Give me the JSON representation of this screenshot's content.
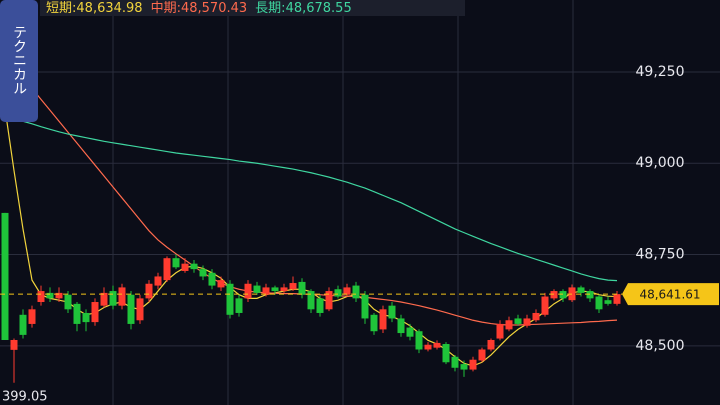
{
  "chart_data": {
    "type": "candlestick",
    "side_tab": "テクニカル",
    "separator": ":",
    "up_color": "#ff3b2f",
    "down_color": "#1fc43a",
    "ylim": [
      48338,
      49447
    ],
    "yticks": [
      {
        "value": 49250,
        "label": "49,250"
      },
      {
        "value": 49000,
        "label": "49,000"
      },
      {
        "value": 48750,
        "label": "48,750"
      },
      {
        "value": 48500,
        "label": "48,500"
      }
    ],
    "grid": true,
    "current_price": {
      "value": 48641.61,
      "label": "48,641.61"
    },
    "annotations": [
      "399.05"
    ],
    "open": [
      48864,
      48489,
      48585,
      48560,
      48620,
      48645,
      48630,
      48640,
      48615,
      48590,
      48565,
      48610,
      48650,
      48610,
      48640,
      48570,
      48630,
      48665,
      48680,
      48740,
      48705,
      48725,
      48710,
      48700,
      48660,
      48670,
      48630,
      48630,
      48665,
      48640,
      48660,
      48650,
      48655,
      48675,
      48650,
      48630,
      48600,
      48655,
      48640,
      48665,
      48640,
      48585,
      48545,
      48610,
      48575,
      48550,
      48540,
      48490,
      48495,
      48505,
      48470,
      48450,
      48435,
      48460,
      48490,
      48520,
      48545,
      48575,
      48555,
      48570,
      48585,
      48630,
      48650,
      48625,
      48660,
      48650,
      48635,
      48625,
      48615
    ],
    "high": [
      48864,
      48520,
      48600,
      48610,
      48665,
      48660,
      48660,
      48650,
      48620,
      48600,
      48630,
      48660,
      48665,
      48670,
      48650,
      48640,
      48680,
      48700,
      48745,
      48750,
      48740,
      48735,
      48720,
      48710,
      48690,
      48680,
      48640,
      48680,
      48675,
      48670,
      48665,
      48670,
      48690,
      48685,
      48655,
      48640,
      48660,
      48665,
      48670,
      48675,
      48650,
      48590,
      48610,
      48620,
      48585,
      48560,
      48545,
      48510,
      48515,
      48510,
      48475,
      48460,
      48470,
      48495,
      48520,
      48570,
      48580,
      48585,
      48585,
      48600,
      48645,
      48655,
      48655,
      48668,
      48665,
      48655,
      48640,
      48635,
      48650
    ],
    "low": [
      48516,
      48399.05,
      48520,
      48550,
      48610,
      48620,
      48620,
      48590,
      48540,
      48540,
      48555,
      48605,
      48600,
      48600,
      48545,
      48560,
      48620,
      48655,
      48675,
      48710,
      48700,
      48700,
      48680,
      48655,
      48650,
      48575,
      48580,
      48620,
      48640,
      48635,
      48640,
      48645,
      48650,
      48630,
      48590,
      48580,
      48595,
      48630,
      48635,
      48620,
      48560,
      48530,
      48535,
      48565,
      48525,
      48515,
      48480,
      48485,
      48490,
      48450,
      48430,
      48415,
      48430,
      48455,
      48485,
      48515,
      48540,
      48555,
      48550,
      48565,
      48580,
      48625,
      48620,
      48620,
      48635,
      48620,
      48590,
      48610,
      48610
    ],
    "close": [
      48516,
      48516,
      48530,
      48600,
      48650,
      48630,
      48645,
      48600,
      48560,
      48565,
      48620,
      48645,
      48610,
      48660,
      48560,
      48630,
      48670,
      48690,
      48740,
      48715,
      48725,
      48710,
      48690,
      48665,
      48680,
      48585,
      48590,
      48670,
      48645,
      48660,
      48650,
      48660,
      48672,
      48640,
      48600,
      48590,
      48650,
      48635,
      48660,
      48630,
      48575,
      48540,
      48600,
      48575,
      48535,
      48525,
      48490,
      48503,
      48508,
      48455,
      48440,
      48435,
      48462,
      48490,
      48516,
      48560,
      48570,
      48560,
      48575,
      48590,
      48635,
      48650,
      48630,
      48660,
      48645,
      48630,
      48600,
      48615,
      48641.61
    ],
    "overlays": [
      {
        "name": "短期",
        "color": "#f2d43c",
        "last_label": "48,634.98",
        "values": [
          49150,
          48980,
          48820,
          48680,
          48640,
          48630,
          48625,
          48620,
          48600,
          48585,
          48590,
          48605,
          48615,
          48620,
          48605,
          48600,
          48620,
          48650,
          48680,
          48700,
          48715,
          48718,
          48712,
          48700,
          48685,
          48660,
          48640,
          48630,
          48630,
          48640,
          48645,
          48650,
          48655,
          48655,
          48648,
          48630,
          48620,
          48625,
          48635,
          48640,
          48625,
          48600,
          48585,
          48580,
          48570,
          48555,
          48535,
          48515,
          48505,
          48490,
          48470,
          48452,
          48445,
          48455,
          48475,
          48500,
          48525,
          48545,
          48560,
          48575,
          48595,
          48615,
          48630,
          48645,
          48650,
          48648,
          48640,
          48636,
          48634.98
        ]
      },
      {
        "name": "中期",
        "color": "#ff6a4d",
        "last_label": "48,570.43",
        "values": [
          49290,
          49265,
          49235,
          49205,
          49175,
          49145,
          49115,
          49085,
          49055,
          49025,
          48995,
          48965,
          48935,
          48905,
          48875,
          48845,
          48815,
          48790,
          48770,
          48752,
          48735,
          48718,
          48700,
          48685,
          48672,
          48662,
          48655,
          48650,
          48647,
          48645,
          48644,
          48643,
          48643,
          48642,
          48641,
          48640,
          48638,
          48637,
          48636,
          48635,
          48633,
          48630,
          48627,
          48624,
          48620,
          48615,
          48610,
          48604,
          48598,
          48591,
          48584,
          48577,
          48570,
          48565,
          48561,
          48558,
          48557,
          48557,
          48558,
          48559,
          48560,
          48561,
          48562,
          48563,
          48564,
          48566,
          48567,
          48569,
          48570.43
        ]
      },
      {
        "name": "長期",
        "color": "#3fd6a0",
        "last_label": "48,678.55",
        "values": [
          49125,
          49120,
          49115,
          49108,
          49100,
          49093,
          49086,
          49080,
          49075,
          49070,
          49065,
          49060,
          49056,
          49052,
          49048,
          49044,
          49040,
          49036,
          49032,
          49028,
          49025,
          49022,
          49019,
          49016,
          49013,
          49010,
          49006,
          49003,
          49000,
          48996,
          48992,
          48988,
          48984,
          48979,
          48974,
          48968,
          48962,
          48955,
          48948,
          48940,
          48932,
          48922,
          48912,
          48902,
          48892,
          48880,
          48868,
          48856,
          48844,
          48832,
          48820,
          48810,
          48800,
          48790,
          48780,
          48771,
          48762,
          48753,
          48745,
          48737,
          48729,
          48721,
          48713,
          48705,
          48697,
          48690,
          48684,
          48680,
          48678.55
        ]
      }
    ]
  }
}
